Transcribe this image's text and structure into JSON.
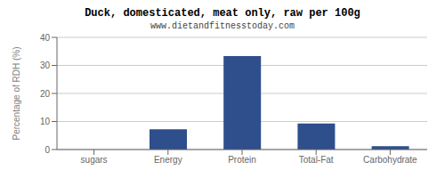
{
  "chart_data": {
    "type": "bar",
    "title": "Duck, domesticated, meat only, raw per 100g",
    "subtitle": "www.dietandfitnesstoday.com",
    "categories": [
      "sugars",
      "Energy",
      "Protein",
      "Total-Fat",
      "Carbohydrate"
    ],
    "values": [
      0,
      7.2,
      33.3,
      9.3,
      1.2
    ],
    "color": "#2e4f8c",
    "ylabel": "Percentage of RDH (%)",
    "ylim": [
      0,
      40
    ],
    "yticks": [
      0,
      10,
      20,
      30,
      40
    ],
    "grid": true
  }
}
